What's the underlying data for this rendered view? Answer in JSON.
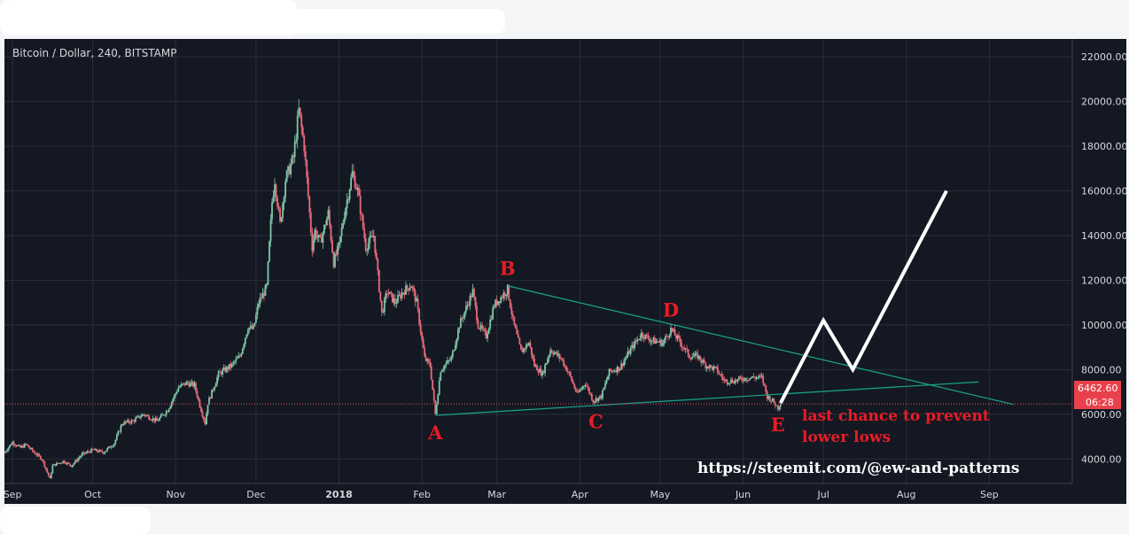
{
  "colors": {
    "background": "#141823",
    "grid": "#2a2e3b",
    "candle_up": "#7fc6a8",
    "candle_down": "#ea6a7a",
    "trendline": "#1aa58a",
    "annotation": "#e81c25",
    "projection": "#ffffff",
    "current_price_line": "#e8414b"
  },
  "chart_data": {
    "type": "candlestick",
    "title": "Bitcoin / Dollar, 240, BITSTAMP",
    "y_axis": {
      "position": "right",
      "ticks": [
        "4000.00",
        "6000.00",
        "8000.00",
        "10000.00",
        "12000.00",
        "14000.00",
        "16000.00",
        "18000.00",
        "20000.00",
        "22000.00"
      ],
      "range": [
        2900,
        22800
      ]
    },
    "x_axis": {
      "ticks": [
        {
          "label": "Sep",
          "date": "2017-09-01",
          "bold": false
        },
        {
          "label": "Oct",
          "date": "2017-10-01",
          "bold": false
        },
        {
          "label": "Nov",
          "date": "2017-11-01",
          "bold": false
        },
        {
          "label": "Dec",
          "date": "2017-12-01",
          "bold": false
        },
        {
          "label": "2018",
          "date": "2018-01-01",
          "bold": true
        },
        {
          "label": "Feb",
          "date": "2018-02-01",
          "bold": false
        },
        {
          "label": "Mar",
          "date": "2018-03-01",
          "bold": false
        },
        {
          "label": "Apr",
          "date": "2018-04-01",
          "bold": false
        },
        {
          "label": "May",
          "date": "2018-05-01",
          "bold": false
        },
        {
          "label": "Jun",
          "date": "2018-06-01",
          "bold": false
        },
        {
          "label": "Jul",
          "date": "2018-07-01",
          "bold": false
        },
        {
          "label": "Aug",
          "date": "2018-08-01",
          "bold": false
        },
        {
          "label": "Sep",
          "date": "2018-09-01",
          "bold": false
        }
      ],
      "range": [
        "2017-08-29",
        "2018-10-02"
      ]
    },
    "price_path": [
      [
        "2017-08-29",
        4300
      ],
      [
        "2017-09-01",
        4750
      ],
      [
        "2017-09-04",
        4500
      ],
      [
        "2017-09-06",
        4650
      ],
      [
        "2017-09-09",
        4300
      ],
      [
        "2017-09-12",
        4000
      ],
      [
        "2017-09-15",
        3100
      ],
      [
        "2017-09-16",
        3700
      ],
      [
        "2017-09-20",
        3900
      ],
      [
        "2017-09-23",
        3700
      ],
      [
        "2017-09-27",
        4200
      ],
      [
        "2017-10-01",
        4400
      ],
      [
        "2017-10-05",
        4300
      ],
      [
        "2017-10-09",
        4700
      ],
      [
        "2017-10-12",
        5600
      ],
      [
        "2017-10-16",
        5700
      ],
      [
        "2017-10-20",
        6000
      ],
      [
        "2017-10-25",
        5700
      ],
      [
        "2017-10-29",
        6200
      ],
      [
        "2017-11-02",
        7200
      ],
      [
        "2017-11-05",
        7400
      ],
      [
        "2017-11-08",
        7300
      ],
      [
        "2017-11-10",
        6400
      ],
      [
        "2017-11-12",
        5600
      ],
      [
        "2017-11-13",
        6500
      ],
      [
        "2017-11-17",
        7800
      ],
      [
        "2017-11-22",
        8200
      ],
      [
        "2017-11-25",
        8600
      ],
      [
        "2017-11-28",
        9900
      ],
      [
        "2017-11-30",
        9800
      ],
      [
        "2017-12-02",
        11000
      ],
      [
        "2017-12-05",
        11700
      ],
      [
        "2017-12-07",
        15500
      ],
      [
        "2017-12-08",
        16500
      ],
      [
        "2017-12-10",
        14500
      ],
      [
        "2017-12-12",
        16500
      ],
      [
        "2017-12-15",
        17500
      ],
      [
        "2017-12-17",
        19600
      ],
      [
        "2017-12-19",
        18000
      ],
      [
        "2017-12-22",
        13500
      ],
      [
        "2017-12-23",
        14200
      ],
      [
        "2017-12-25",
        13700
      ],
      [
        "2017-12-28",
        15000
      ],
      [
        "2017-12-30",
        12800
      ],
      [
        "2018-01-01",
        13500
      ],
      [
        "2018-01-03",
        15000
      ],
      [
        "2018-01-06",
        16800
      ],
      [
        "2018-01-08",
        16000
      ],
      [
        "2018-01-11",
        13500
      ],
      [
        "2018-01-14",
        14000
      ],
      [
        "2018-01-17",
        10500
      ],
      [
        "2018-01-19",
        11500
      ],
      [
        "2018-01-22",
        11000
      ],
      [
        "2018-01-25",
        11500
      ],
      [
        "2018-01-28",
        11800
      ],
      [
        "2018-01-30",
        11000
      ],
      [
        "2018-02-02",
        8500
      ],
      [
        "2018-02-04",
        8200
      ],
      [
        "2018-02-06",
        6000
      ],
      [
        "2018-02-08",
        8000
      ],
      [
        "2018-02-12",
        8500
      ],
      [
        "2018-02-15",
        10000
      ],
      [
        "2018-02-20",
        11500
      ],
      [
        "2018-02-22",
        10000
      ],
      [
        "2018-02-25",
        9500
      ],
      [
        "2018-02-28",
        10900
      ],
      [
        "2018-03-03",
        11300
      ],
      [
        "2018-03-05",
        11600
      ],
      [
        "2018-03-07",
        10200
      ],
      [
        "2018-03-10",
        8800
      ],
      [
        "2018-03-13",
        9200
      ],
      [
        "2018-03-15",
        8200
      ],
      [
        "2018-03-18",
        7800
      ],
      [
        "2018-03-21",
        8900
      ],
      [
        "2018-03-25",
        8500
      ],
      [
        "2018-03-28",
        7800
      ],
      [
        "2018-03-31",
        6900
      ],
      [
        "2018-04-03",
        7400
      ],
      [
        "2018-04-06",
        6600
      ],
      [
        "2018-04-09",
        6800
      ],
      [
        "2018-04-12",
        7900
      ],
      [
        "2018-04-16",
        8100
      ],
      [
        "2018-04-20",
        8900
      ],
      [
        "2018-04-24",
        9600
      ],
      [
        "2018-04-28",
        9300
      ],
      [
        "2018-05-02",
        9200
      ],
      [
        "2018-05-05",
        9800
      ],
      [
        "2018-05-08",
        9300
      ],
      [
        "2018-05-12",
        8600
      ],
      [
        "2018-05-15",
        8600
      ],
      [
        "2018-05-18",
        8200
      ],
      [
        "2018-05-22",
        8000
      ],
      [
        "2018-05-25",
        7500
      ],
      [
        "2018-05-29",
        7500
      ],
      [
        "2018-06-01",
        7600
      ],
      [
        "2018-06-05",
        7650
      ],
      [
        "2018-06-08",
        7650
      ],
      [
        "2018-06-10",
        6800
      ],
      [
        "2018-06-12",
        6600
      ],
      [
        "2018-06-14",
        6300
      ],
      [
        "2018-06-15",
        6550
      ]
    ],
    "current_price": {
      "value": 6462.6,
      "label": "6462.60",
      "countdown": "06:28"
    },
    "trendlines": [
      {
        "name": "B-D upper",
        "from": [
          "2018-03-05",
          11750
        ],
        "to": [
          "2018-09-10",
          6440
        ]
      },
      {
        "name": "A-C lower",
        "from": [
          "2018-02-06",
          5950
        ],
        "to": [
          "2018-08-28",
          7450
        ]
      }
    ],
    "projection": [
      [
        "2018-06-15",
        6500
      ],
      [
        "2018-07-01",
        10200
      ],
      [
        "2018-07-12",
        8000
      ],
      [
        "2018-08-16",
        16000
      ]
    ],
    "wave_points": [
      {
        "label": "A",
        "date": "2018-02-06",
        "price": 5950
      },
      {
        "label": "B",
        "date": "2018-03-05",
        "price": 11750
      },
      {
        "label": "C",
        "date": "2018-04-07",
        "price": 6450
      },
      {
        "label": "D",
        "date": "2018-05-05",
        "price": 9900
      },
      {
        "label": "E",
        "date": "2018-06-14",
        "price": 6300
      }
    ]
  },
  "annotations": {
    "note_line1": "last chance to prevent",
    "note_line2": "lower lows",
    "url": "https://steemit.com/@ew-and-patterns"
  }
}
